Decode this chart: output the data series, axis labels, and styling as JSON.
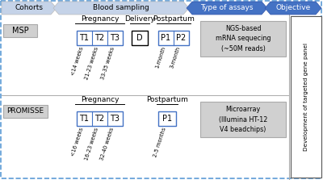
{
  "header_labels": [
    "Cohorts",
    "Blood sampling",
    "Type of assays",
    "Objective"
  ],
  "background": "#ffffff",
  "cohort1": "MSP",
  "cohort2": "PROMISSE",
  "msp_preg_label": "Pregnancy",
  "msp_deliv_label": "Delivery",
  "msp_post_label": "Postpartum",
  "msp_preg_boxes": [
    "T1",
    "T2",
    "T3"
  ],
  "msp_deliv_boxes": [
    "D"
  ],
  "msp_post_boxes": [
    "P1",
    "P2"
  ],
  "msp_preg_times": [
    "<14 weeks",
    "21-23 weeks",
    "33-35 weeks"
  ],
  "msp_post_times": [
    "1-month",
    "3-month"
  ],
  "msp_assay": "NGS-based\nmRNA sequecing\n(~50M reads)",
  "promisse_preg_label": "Pregnancy",
  "promisse_post_label": "Postpartum",
  "promisse_preg_boxes": [
    "T1",
    "T2",
    "T3"
  ],
  "promisse_post_boxes": [
    "P1"
  ],
  "promisse_preg_times": [
    "<16 weeks",
    "16-23 weeks",
    "32-40 weeks"
  ],
  "promisse_post_times": [
    "2-5 months"
  ],
  "promisse_assay": "Microarray\n(Illumina HT-12\nV4 beadchips)",
  "objective_label": "Development of targeted gene panel",
  "header_light_color": "#c5d3e8",
  "header_dark_color": "#4472c4",
  "box_border_blue": "#4472c4",
  "box_border_black": "#000000",
  "box_fill": "#ffffff",
  "cohort_box_fill": "#d0d0d0",
  "assay_box_fill": "#d0d0d0",
  "objective_box_fill": "#ffffff",
  "outer_border_color": "#5b9bd5",
  "divider_color": "#aaaaaa"
}
